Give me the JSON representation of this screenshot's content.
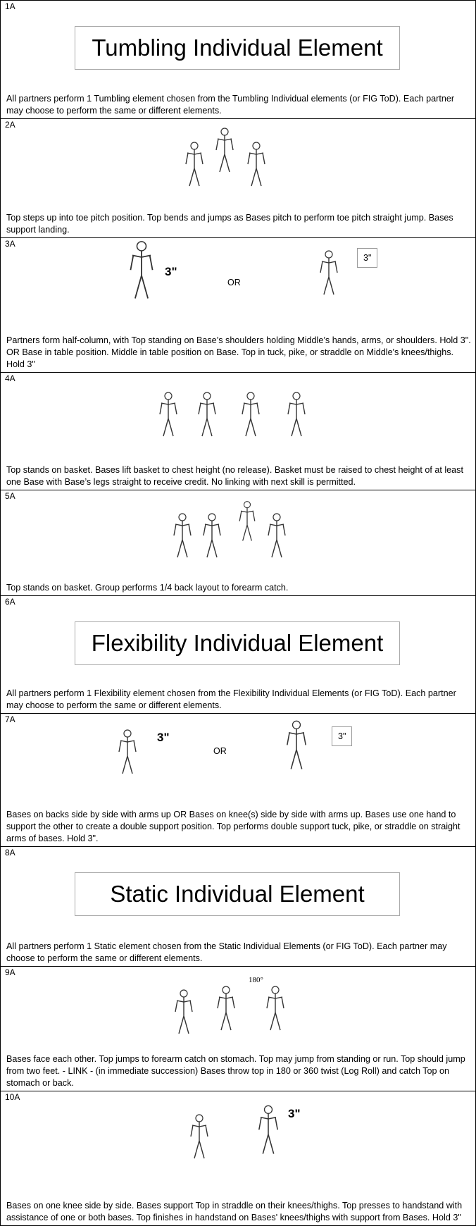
{
  "rows": [
    {
      "id": "1A",
      "heading": "Tumbling Individual Element",
      "text": "All partners perform 1 Tumbling element chosen from the Tumbling Individual elements (or FIG ToD). Each partner may choose to perform the same or different elements."
    },
    {
      "id": "2A",
      "text": "Top steps up into toe pitch position. Top bends and jumps as Bases pitch to perform toe pitch straight jump. Bases support landing."
    },
    {
      "id": "3A",
      "annotations": [
        "3\"",
        "OR",
        "3\""
      ],
      "text": "Partners form half-column, with Top standing on Base’s shoulders holding Middle’s hands, arms, or shoulders. Hold 3\". OR Base in table position. Middle in table position on Base. Top in tuck, pike, or straddle on Middle's knees/thighs. Hold 3\""
    },
    {
      "id": "4A",
      "text": "Top stands on basket. Bases lift basket to chest height (no release). Basket must be raised to chest height of at least one Base with Base’s legs straight to receive credit. No linking with next skill is permitted."
    },
    {
      "id": "5A",
      "text": "Top stands on basket. Group performs 1/4 back layout to forearm catch."
    },
    {
      "id": "6A",
      "heading": "Flexibility Individual Element",
      "text": "All partners perform 1 Flexibility element chosen from the Flexibility Individual Elements (or FIG ToD). Each partner may choose to perform the same or different elements."
    },
    {
      "id": "7A",
      "annotations": [
        "3\"",
        "OR",
        "3\""
      ],
      "text": "Bases on backs side by side with arms up OR Bases on knee(s) side by side with arms up. Bases use one hand to support the other to create a double support position. Top performs double support tuck, pike, or straddle on straight arms of bases. Hold 3\"."
    },
    {
      "id": "8A",
      "heading": "Static Individual Element",
      "text": "All partners perform 1 Static element chosen from the Static Individual Elements (or FIG ToD). Each partner may choose to perform the same or different elements."
    },
    {
      "id": "9A",
      "annotations": [
        "180°"
      ],
      "text": "Bases face each other. Top jumps to forearm catch on stomach. Top may jump from standing or run. Top should jump from two feet. - LINK - (in immediate succession) Bases throw top in 180 or 360 twist (Log Roll) and catch Top on stomach or back."
    },
    {
      "id": "10A",
      "annotations": [
        "3\""
      ],
      "text": "Bases on one knee side by side. Bases support Top in straddle on their knees/thighs. Top presses to handstand with assistance of one or both bases. Top finishes in handstand on Bases' knees/thighs with support from Bases. Hold 3\""
    }
  ]
}
